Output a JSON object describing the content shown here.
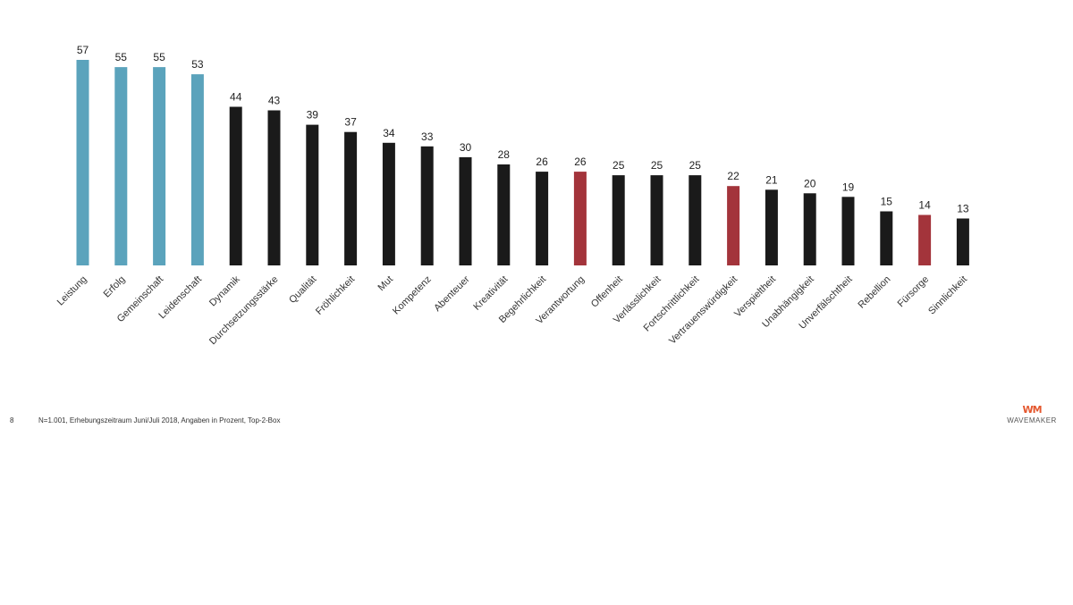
{
  "chart_data": {
    "type": "bar",
    "categories": [
      "Leistung",
      "Erfolg",
      "Gemeinschaft",
      "Leidenschaft",
      "Dynamik",
      "Durchsetzungsstärke",
      "Qualität",
      "Fröhlichkeit",
      "Mut",
      "Kompetenz",
      "Abenteuer",
      "Kreativität",
      "Begehrlichkeit",
      "Verantwortung",
      "Offenheit",
      "Verlässlichkeit",
      "Fortschrittlichkeit",
      "Vertrauenswürdigkeit",
      "Verspieltheit",
      "Unabhängigkeit",
      "Unverfälschtheit",
      "Rebellion",
      "Fürsorge",
      "Sinnlichkeit"
    ],
    "values": [
      57,
      55,
      55,
      53,
      44,
      43,
      39,
      37,
      34,
      33,
      30,
      28,
      26,
      26,
      25,
      25,
      25,
      22,
      21,
      20,
      19,
      15,
      14,
      13
    ],
    "color_groups": [
      "blue",
      "blue",
      "blue",
      "blue",
      "black",
      "black",
      "black",
      "black",
      "black",
      "black",
      "black",
      "black",
      "black",
      "red",
      "black",
      "black",
      "black",
      "red",
      "black",
      "black",
      "black",
      "black",
      "red",
      "black"
    ],
    "colors": {
      "blue": "#5ba3bc",
      "black": "#1a1a1a",
      "red": "#a3343b"
    },
    "ylim": [
      0,
      57
    ],
    "grid": false,
    "legend": "none"
  },
  "footer": {
    "page_number": "8",
    "note": "N=1.001, Erhebungszeitraum Juni/Juli 2018, Angaben in Prozent, Top-2-Box"
  },
  "logo": {
    "mark": "WM",
    "text": "WAVEMAKER"
  }
}
